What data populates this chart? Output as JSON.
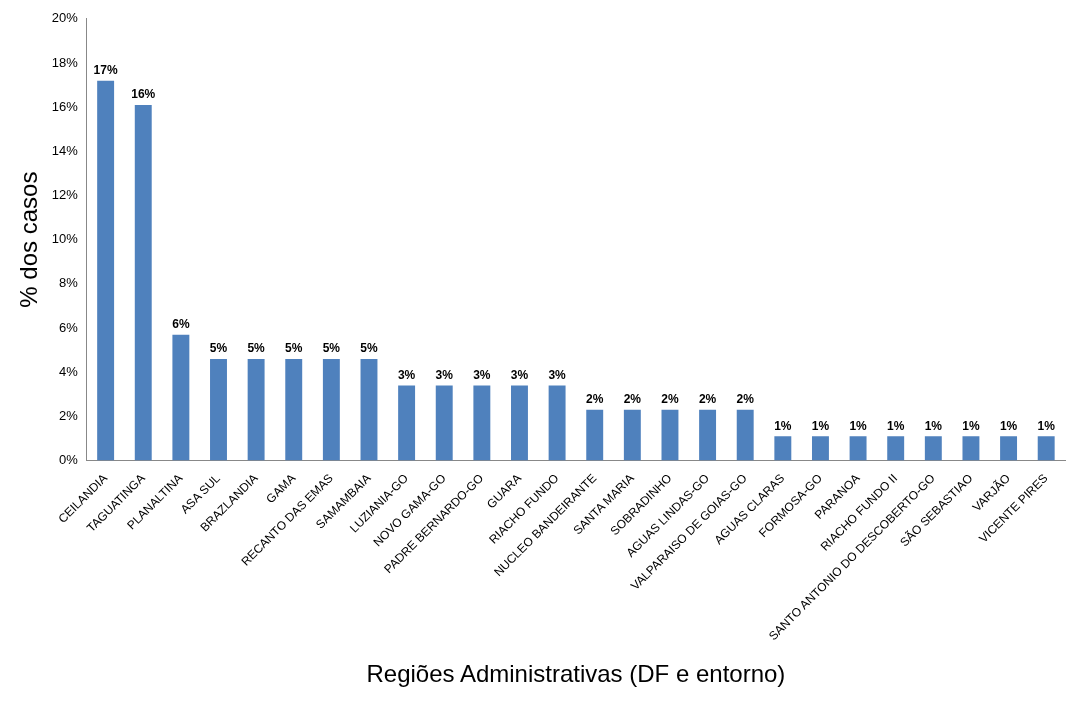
{
  "chart_data": {
    "type": "bar",
    "xlabel": "Regiões Administrativas (DF e entorno)",
    "ylabel": "% dos casos",
    "categories": [
      "CEILANDIA",
      "TAGUATINGA",
      "PLANALTINA",
      "ASA SUL",
      "BRAZLANDIA",
      "GAMA",
      "RECANTO DAS EMAS",
      "SAMAMBAIA",
      "LUZIANIA-GO",
      "NOVO GAMA-GO",
      "PADRE BERNARDO-GO",
      "GUARA",
      "RIACHO FUNDO",
      "NUCLEO BANDEIRANTE",
      "SANTA MARIA",
      "SOBRADINHO",
      "AGUAS LINDAS-GO",
      "VALPARAISO DE GOIAS-GO",
      "AGUAS CLARAS",
      "FORMOSA-GO",
      "PARANOA",
      "RIACHO FUNDO II",
      "SANTO ANTONIO DO DESCOBERTO-GO",
      "SÃO SEBASTIAO",
      "VARJÃO",
      "VICENTE PIRES"
    ],
    "values": [
      17.2,
      16.1,
      5.7,
      4.6,
      4.6,
      4.6,
      4.6,
      4.6,
      3.4,
      3.4,
      3.4,
      3.4,
      3.4,
      2.3,
      2.3,
      2.3,
      2.3,
      2.3,
      1.1,
      1.1,
      1.1,
      1.1,
      1.1,
      1.1,
      1.1,
      1.1
    ],
    "value_labels": [
      "17%",
      "16%",
      "6%",
      "5%",
      "5%",
      "5%",
      "5%",
      "5%",
      "3%",
      "3%",
      "3%",
      "3%",
      "3%",
      "2%",
      "2%",
      "2%",
      "2%",
      "2%",
      "1%",
      "1%",
      "1%",
      "1%",
      "1%",
      "1%",
      "1%",
      "1%"
    ],
    "color": "#4f81bd",
    "ylim": [
      0,
      20
    ],
    "yticks": [
      {
        "value": 0,
        "label": "0%"
      },
      {
        "value": 2,
        "label": "2%"
      },
      {
        "value": 4,
        "label": "4%"
      },
      {
        "value": 6,
        "label": "6%"
      },
      {
        "value": 8,
        "label": "8%"
      },
      {
        "value": 10,
        "label": "10%"
      },
      {
        "value": 12,
        "label": "12%"
      },
      {
        "value": 14,
        "label": "14%"
      },
      {
        "value": 16,
        "label": "16%"
      },
      {
        "value": 18,
        "label": "18%"
      },
      {
        "value": 20,
        "label": "20%"
      }
    ],
    "grid": false,
    "legend": false
  }
}
